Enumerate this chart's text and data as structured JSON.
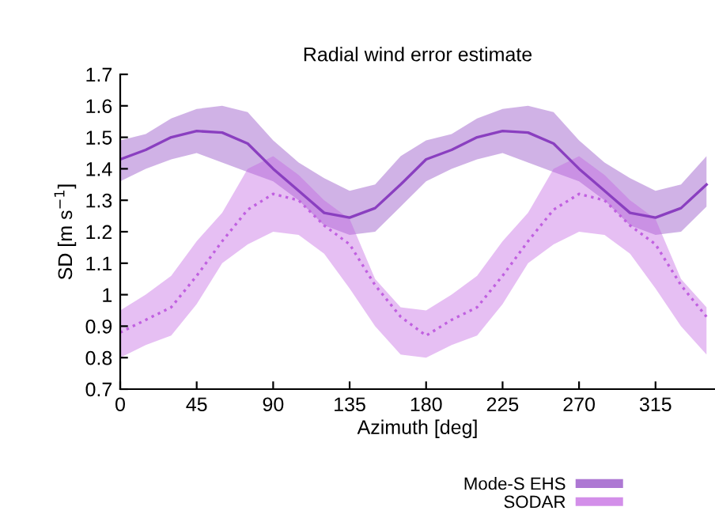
{
  "chart_data": {
    "type": "line",
    "title": "Radial wind error estimate",
    "xlabel": "Azimuth [deg]",
    "ylabel": "SD [m s$^{−1}$]",
    "x": [
      0,
      15,
      30,
      45,
      60,
      75,
      90,
      105,
      120,
      135,
      150,
      165,
      180,
      195,
      210,
      225,
      240,
      255,
      270,
      285,
      300,
      315,
      330,
      345
    ],
    "series": [
      {
        "name": "Mode-S EHS",
        "color": "#8a3fc0",
        "line_style": "solid",
        "values": [
          1.43,
          1.46,
          1.5,
          1.52,
          1.515,
          1.48,
          1.4,
          1.33,
          1.26,
          1.245,
          1.275,
          1.35,
          1.43,
          1.46,
          1.5,
          1.52,
          1.515,
          1.48,
          1.4,
          1.33,
          1.26,
          1.245,
          1.275,
          1.35
        ],
        "lower": [
          1.36,
          1.4,
          1.43,
          1.45,
          1.42,
          1.39,
          1.36,
          1.3,
          1.22,
          1.19,
          1.2,
          1.28,
          1.36,
          1.4,
          1.43,
          1.45,
          1.42,
          1.39,
          1.36,
          1.3,
          1.22,
          1.19,
          1.2,
          1.28
        ],
        "upper": [
          1.49,
          1.51,
          1.56,
          1.59,
          1.6,
          1.58,
          1.49,
          1.42,
          1.37,
          1.33,
          1.35,
          1.44,
          1.49,
          1.51,
          1.56,
          1.59,
          1.6,
          1.58,
          1.49,
          1.42,
          1.37,
          1.33,
          1.35,
          1.44
        ]
      },
      {
        "name": "SODAR",
        "color": "#c060e0",
        "line_style": "dotted",
        "values": [
          0.88,
          0.92,
          0.96,
          1.06,
          1.17,
          1.27,
          1.32,
          1.3,
          1.22,
          1.16,
          1.03,
          0.93,
          0.87,
          0.92,
          0.96,
          1.06,
          1.17,
          1.27,
          1.32,
          1.3,
          1.22,
          1.16,
          1.03,
          0.93
        ],
        "lower": [
          0.8,
          0.84,
          0.87,
          0.97,
          1.1,
          1.16,
          1.2,
          1.19,
          1.13,
          1.02,
          0.9,
          0.81,
          0.8,
          0.84,
          0.87,
          0.97,
          1.1,
          1.16,
          1.2,
          1.19,
          1.13,
          1.02,
          0.9,
          0.81
        ],
        "upper": [
          0.95,
          1.0,
          1.06,
          1.17,
          1.26,
          1.4,
          1.44,
          1.38,
          1.3,
          1.24,
          1.05,
          0.96,
          0.95,
          1.0,
          1.06,
          1.17,
          1.26,
          1.4,
          1.44,
          1.38,
          1.3,
          1.24,
          1.05,
          0.96
        ]
      }
    ],
    "xlim": [
      0,
      350
    ],
    "xticks": [
      0,
      45,
      90,
      135,
      180,
      225,
      270,
      315
    ],
    "ylim": [
      0.7,
      1.7
    ],
    "yticks": [
      0.7,
      0.8,
      0.9,
      1,
      1.1,
      1.2,
      1.3,
      1.4,
      1.5,
      1.6,
      1.7
    ],
    "legend": "bottom right",
    "grid": false
  }
}
